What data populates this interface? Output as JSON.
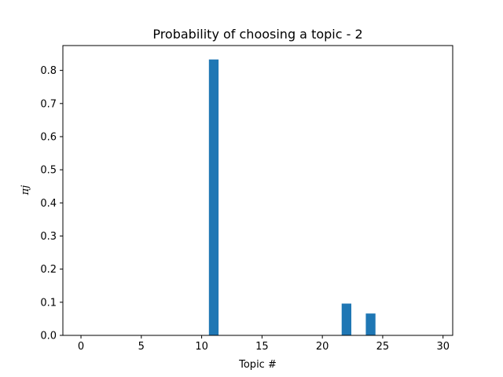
{
  "chart_data": {
    "type": "bar",
    "title": "Probability of choosing a topic - 2",
    "xlabel": "Topic #",
    "ylabel": "πj",
    "x": [
      0,
      1,
      2,
      3,
      4,
      5,
      6,
      7,
      8,
      9,
      10,
      11,
      12,
      13,
      14,
      15,
      16,
      17,
      18,
      19,
      20,
      21,
      22,
      23,
      24,
      25,
      26,
      27,
      28,
      29
    ],
    "values": [
      0,
      0,
      0,
      0,
      0,
      0,
      0,
      0,
      0,
      0,
      0,
      0.833,
      0,
      0,
      0,
      0,
      0,
      0,
      0,
      0,
      0,
      0,
      0.096,
      0,
      0.066,
      0,
      0,
      0,
      0,
      0
    ],
    "xlim": [
      -1.5,
      30.8
    ],
    "ylim": [
      0,
      0.875
    ],
    "xticks": [
      0,
      5,
      10,
      15,
      20,
      25,
      30
    ],
    "yticks": [
      0.0,
      0.1,
      0.2,
      0.3,
      0.4,
      0.5,
      0.6,
      0.7,
      0.8
    ],
    "bar_color": "#1f77b4",
    "grid": false,
    "legend": "none"
  }
}
